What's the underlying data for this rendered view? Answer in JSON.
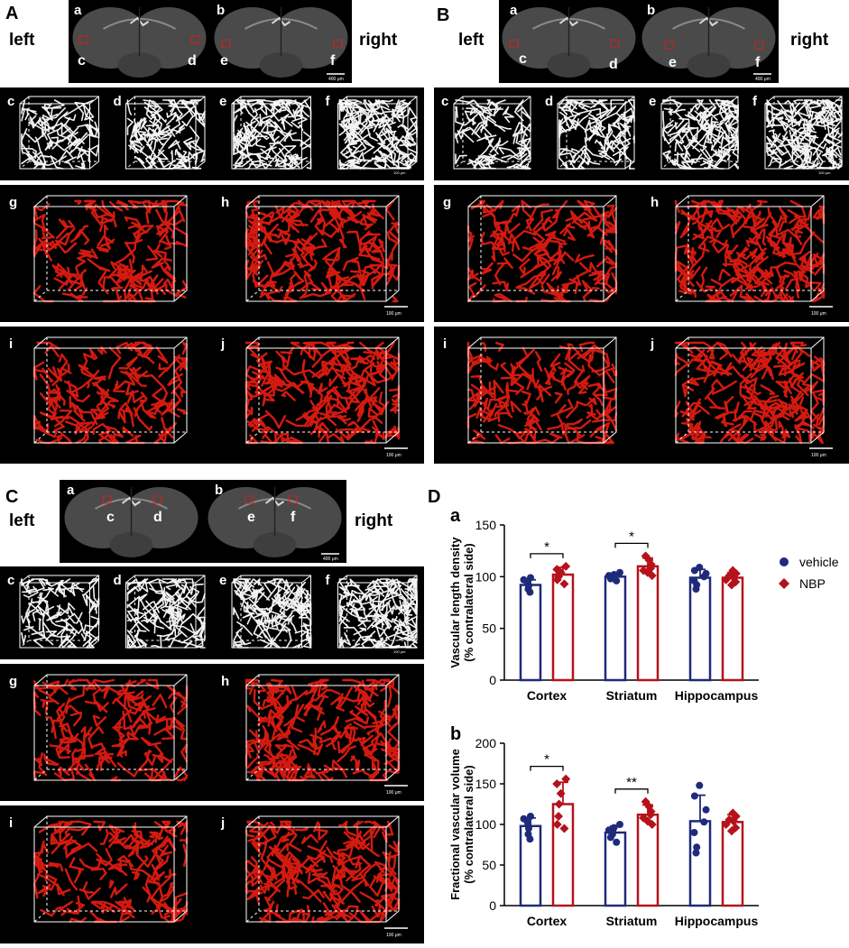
{
  "figure": {
    "panels": [
      {
        "id": "A",
        "side_left": "left",
        "side_right": "right",
        "brain_sub": [
          "a",
          "b"
        ],
        "brain_roi": [
          "c",
          "d",
          "e",
          "f"
        ],
        "brain_scale": "400 μm",
        "white_sub": [
          "c",
          "d",
          "e",
          "f"
        ],
        "white_scale": "100 μm",
        "red_sub": [
          "g",
          "h",
          "i",
          "j"
        ],
        "red_scale": "100 μm"
      },
      {
        "id": "B",
        "side_left": "left",
        "side_right": "right",
        "brain_sub": [
          "a",
          "b"
        ],
        "brain_roi": [
          "c",
          "d",
          "e",
          "f"
        ],
        "brain_scale": "400 μm",
        "white_sub": [
          "c",
          "d",
          "e",
          "f"
        ],
        "white_scale": "100 μm",
        "red_sub": [
          "g",
          "h",
          "i",
          "j"
        ],
        "red_scale": "100 μm"
      },
      {
        "id": "C",
        "side_left": "left",
        "side_right": "right",
        "brain_sub": [
          "a",
          "b"
        ],
        "brain_roi": [
          "c",
          "d",
          "e",
          "f"
        ],
        "brain_scale": "400 μm",
        "white_sub": [
          "c",
          "d",
          "e",
          "f"
        ],
        "white_scale": "100 μm",
        "red_sub": [
          "g",
          "h",
          "i",
          "j"
        ],
        "red_scale": "100 μm"
      }
    ],
    "panel_D": {
      "id": "D",
      "colors": {
        "vehicle": "#1f2a7a",
        "NBP": "#b5121b"
      },
      "legend": {
        "vehicle": "vehicle",
        "NBP": "NBP"
      }
    }
  },
  "chart_data": [
    {
      "type": "bar",
      "panel": "a",
      "categories": [
        "Cortex",
        "Striatum",
        "Hippocampus"
      ],
      "ylabel_line1": "Vascular length density",
      "ylabel_line2": "(% contralateral side)",
      "ylim": [
        0,
        150
      ],
      "yticks": [
        "0",
        "50",
        "100",
        "150"
      ],
      "series": [
        {
          "name": "vehicle",
          "values": [
            92,
            100,
            99
          ],
          "errors": [
            5,
            3,
            8
          ],
          "points": [
            [
              85,
              88,
              91,
              93,
              95,
              97,
              99
            ],
            [
              96,
              98,
              99,
              100,
              101,
              102,
              104
            ],
            [
              88,
              92,
              96,
              100,
              103,
              106,
              109
            ]
          ]
        },
        {
          "name": "NBP",
          "values": [
            102,
            110,
            99
          ],
          "errors": [
            7,
            8,
            5
          ],
          "points": [
            [
              93,
              97,
              100,
              102,
              104,
              107,
              110
            ],
            [
              101,
              104,
              106,
              108,
              112,
              116,
              120
            ],
            [
              92,
              95,
              97,
              99,
              101,
              103,
              106
            ]
          ]
        }
      ],
      "significance": [
        {
          "category": "Cortex",
          "label": "*"
        },
        {
          "category": "Striatum",
          "label": "*"
        }
      ]
    },
    {
      "type": "bar",
      "panel": "b",
      "categories": [
        "Cortex",
        "Striatum",
        "Hippocampus"
      ],
      "ylabel_line1": "Fractional vascular volume",
      "ylabel_line2": "(% contralateral side)",
      "ylim": [
        0,
        200
      ],
      "yticks": [
        "0",
        "50",
        "100",
        "150",
        "200"
      ],
      "series": [
        {
          "name": "vehicle",
          "values": [
            98,
            90,
            104
          ],
          "errors": [
            10,
            8,
            32
          ],
          "points": [
            [
              82,
              88,
              95,
              100,
              104,
              107,
              110
            ],
            [
              78,
              84,
              88,
              91,
              93,
              96,
              100
            ],
            [
              65,
              72,
              90,
              103,
              118,
              135,
              148
            ]
          ]
        },
        {
          "name": "NBP",
          "values": [
            125,
            112,
            103
          ],
          "errors": [
            27,
            12,
            9
          ],
          "points": [
            [
              95,
              100,
              110,
              125,
              138,
              150,
              156
            ],
            [
              100,
              104,
              108,
              112,
              116,
              122,
              128
            ],
            [
              92,
              96,
              100,
              104,
              106,
              110,
              114
            ]
          ]
        }
      ],
      "significance": [
        {
          "category": "Cortex",
          "label": "*"
        },
        {
          "category": "Striatum",
          "label": "**"
        }
      ]
    }
  ]
}
